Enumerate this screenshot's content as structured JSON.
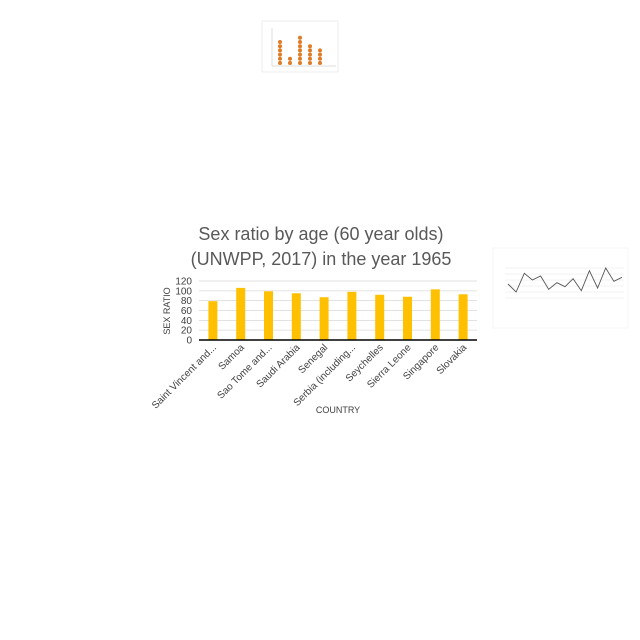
{
  "chart_data": [
    {
      "type": "bar",
      "title": "Sex ratio by age (60 year olds) (UNWPP, 2017) in the year 1965",
      "title_lines": [
        "Sex ratio by age (60 year olds)",
        "(UNWPP, 2017) in the year 1965"
      ],
      "xlabel": "COUNTRY",
      "ylabel": "SEX RATIO",
      "categories": [
        "Saint Vincent and...",
        "Samoa",
        "Sao Tome and...",
        "Saudi Arabia",
        "Senegal",
        "Serbia (including...",
        "Seychelles",
        "Sierra Leone",
        "Singapore",
        "Slovakia"
      ],
      "values": [
        79,
        106,
        99,
        95,
        87,
        98,
        92,
        88,
        103,
        93
      ],
      "ylim": [
        0,
        120
      ],
      "yticks": [
        0,
        20,
        40,
        60,
        80,
        100,
        120
      ],
      "grid": true,
      "legend": "none",
      "bar_color": "#FFC000"
    },
    {
      "type": "scatter",
      "title": "",
      "xlabel": "",
      "ylabel": "",
      "x": [
        1,
        2,
        3,
        4,
        5,
        6
      ],
      "values": [
        6,
        2,
        7,
        5,
        4,
        0
      ],
      "marker_color": "#E07B28"
    },
    {
      "type": "line",
      "title": "",
      "xlabel": "",
      "ylabel": "",
      "values": [
        12,
        6,
        20,
        15,
        18,
        8,
        13,
        10,
        16,
        7,
        22,
        9,
        24,
        14,
        17
      ],
      "line_color": "#555555"
    }
  ]
}
